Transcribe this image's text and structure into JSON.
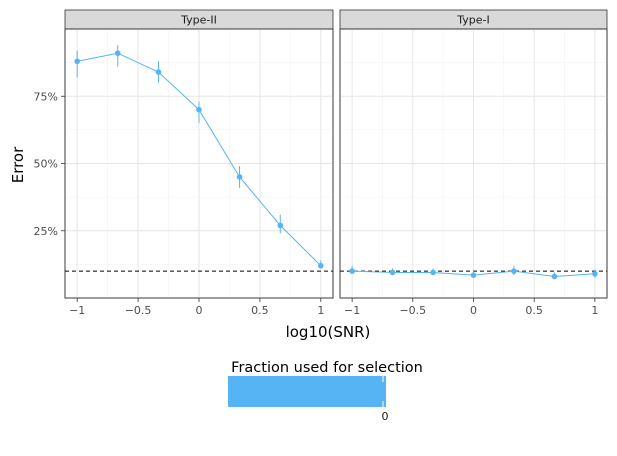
{
  "chart_data": {
    "type": "line",
    "xlabel": "log10(SNR)",
    "ylabel": "Error",
    "x_ticks": [
      -1,
      -0.5,
      0,
      0.5,
      1
    ],
    "x_tick_labels": [
      "−1",
      "−0.5",
      "0",
      "0.5",
      "1"
    ],
    "y_ticks": [
      0.25,
      0.5,
      0.75
    ],
    "y_tick_labels": [
      "25%",
      "50%",
      "75%"
    ],
    "xlim": [
      -1.1,
      1.1
    ],
    "ylim": [
      0.0,
      1.0
    ],
    "grid": true,
    "reference_line": {
      "y": 0.1,
      "style": "dashed"
    },
    "line_color": "#56b4f4",
    "panels": [
      {
        "label": "Type-II",
        "points": [
          {
            "x": -1.0,
            "y": 0.88,
            "lo": 0.82,
            "hi": 0.92
          },
          {
            "x": -0.667,
            "y": 0.91,
            "lo": 0.86,
            "hi": 0.94
          },
          {
            "x": -0.333,
            "y": 0.84,
            "lo": 0.8,
            "hi": 0.88
          },
          {
            "x": 0.0,
            "y": 0.7,
            "lo": 0.65,
            "hi": 0.73
          },
          {
            "x": 0.333,
            "y": 0.45,
            "lo": 0.41,
            "hi": 0.49
          },
          {
            "x": 0.667,
            "y": 0.27,
            "lo": 0.24,
            "hi": 0.31
          },
          {
            "x": 1.0,
            "y": 0.12,
            "lo": 0.11,
            "hi": 0.14
          }
        ]
      },
      {
        "label": "Type-I",
        "points": [
          {
            "x": -1.0,
            "y": 0.1,
            "lo": 0.09,
            "hi": 0.12
          },
          {
            "x": -0.667,
            "y": 0.095,
            "lo": 0.085,
            "hi": 0.11
          },
          {
            "x": -0.333,
            "y": 0.095,
            "lo": 0.085,
            "hi": 0.11
          },
          {
            "x": 0.0,
            "y": 0.085,
            "lo": 0.075,
            "hi": 0.1
          },
          {
            "x": 0.333,
            "y": 0.1,
            "lo": 0.085,
            "hi": 0.12
          },
          {
            "x": 0.667,
            "y": 0.08,
            "lo": 0.07,
            "hi": 0.095
          },
          {
            "x": 1.0,
            "y": 0.09,
            "lo": 0.075,
            "hi": 0.105
          }
        ]
      }
    ],
    "legend": {
      "title": "Fraction used for selection",
      "tick_label": "0",
      "position": "bottom",
      "color": "#56b4f4"
    }
  }
}
